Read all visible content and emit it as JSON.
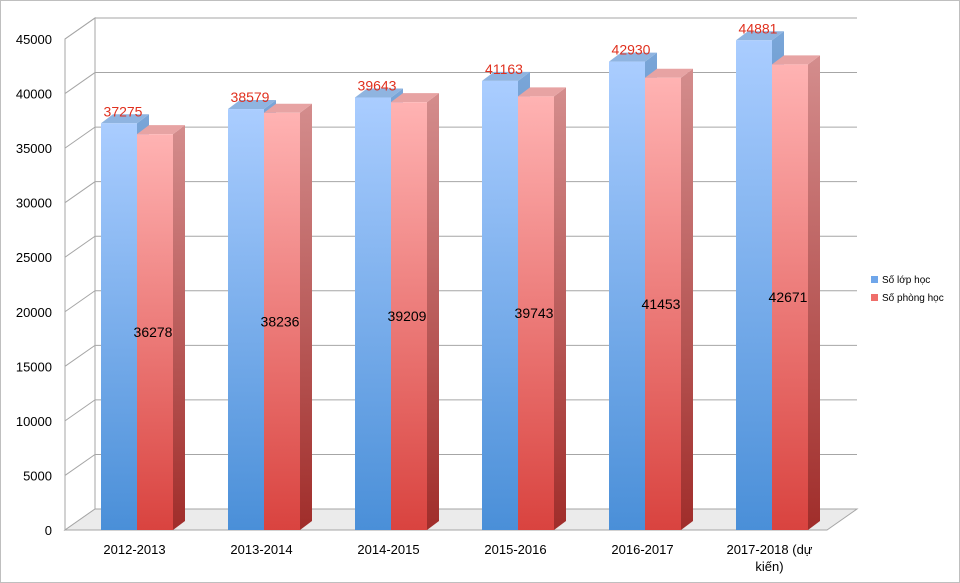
{
  "chart_data": {
    "type": "bar",
    "categories": [
      "2012-2013",
      "2013-2014",
      "2014-2015",
      "2015-2016",
      "2016-2017",
      "2017-2018 (dự kiến)"
    ],
    "series": [
      {
        "name": "Số lớp học",
        "values": [
          37275,
          38579,
          39643,
          41163,
          42930,
          44881
        ]
      },
      {
        "name": "Số phòng học",
        "values": [
          36278,
          38236,
          39209,
          39743,
          41453,
          42671
        ]
      }
    ],
    "ylim": [
      0,
      45000
    ],
    "yticks": [
      0,
      5000,
      10000,
      15000,
      20000,
      25000,
      30000,
      35000,
      40000,
      45000
    ],
    "grid": true,
    "legend_position": "right",
    "style": "3d-clustered-column",
    "colors": {
      "series1_top": "#aacdff",
      "series1_bottom": "#4a8fd8",
      "series2_top": "#ffb3b3",
      "series2_bottom": "#d9433f",
      "label_series1": "#e0301e",
      "label_series2": "#000000"
    }
  }
}
